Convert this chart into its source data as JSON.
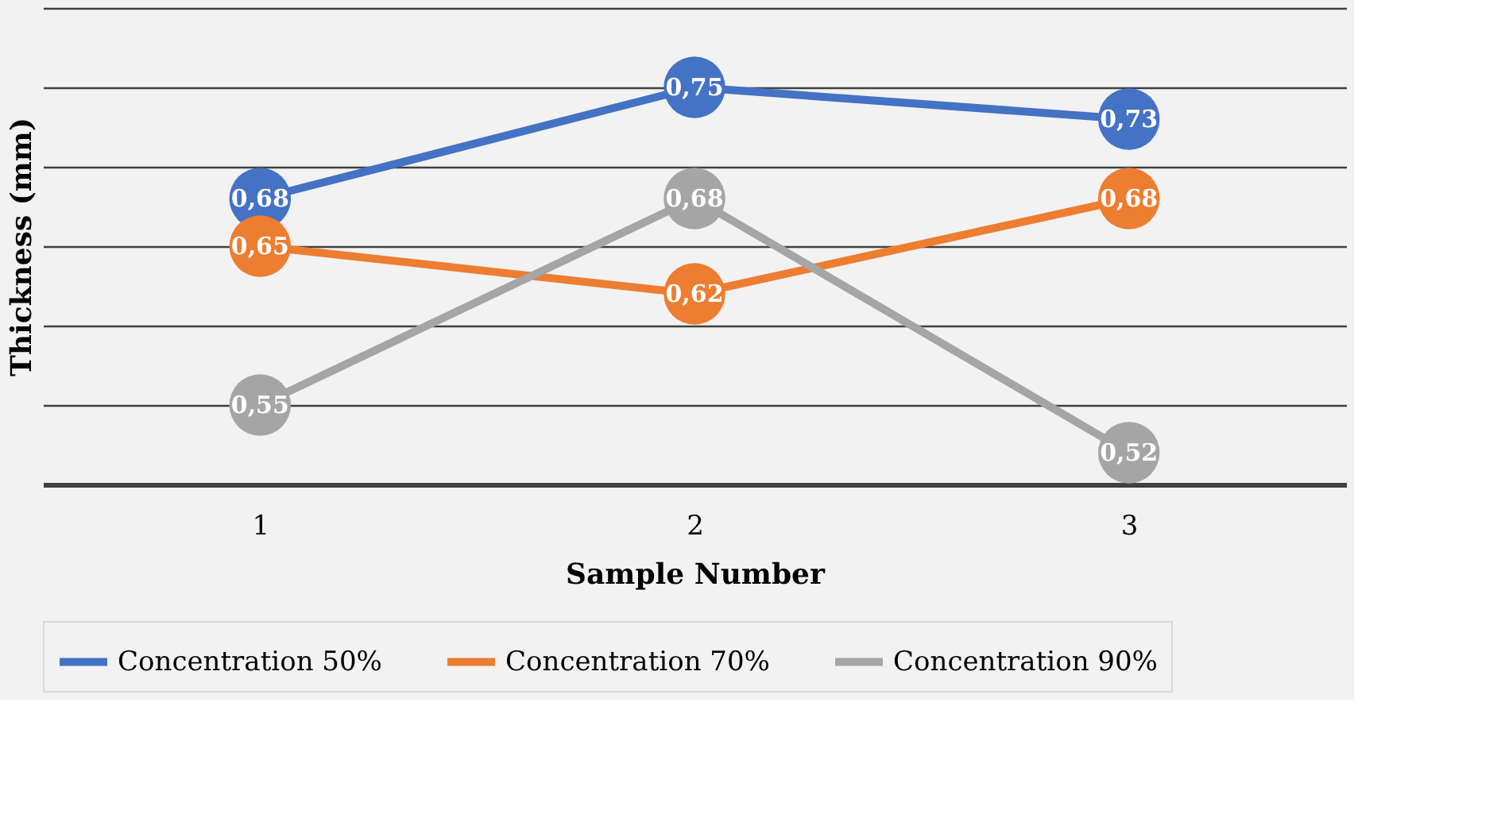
{
  "chart_data": {
    "type": "line",
    "xlabel": "Sample Number",
    "ylabel": "Thickness (mm)",
    "categories": [
      "1",
      "2",
      "3"
    ],
    "series": [
      {
        "name": "Concentration 50%",
        "color": "#4472c4",
        "values": [
          0.68,
          0.75,
          0.73
        ],
        "value_labels": [
          "0,68",
          "0,75",
          "0,73"
        ]
      },
      {
        "name": "Concentration 70%",
        "color": "#ed7d31",
        "values": [
          0.65,
          0.62,
          0.68
        ],
        "value_labels": [
          "0,65",
          "0,62",
          "0,68"
        ]
      },
      {
        "name": "Concentration 90%",
        "color": "#a5a5a5",
        "values": [
          0.55,
          0.68,
          0.52
        ],
        "value_labels": [
          "0,55",
          "0,68",
          "0,52"
        ]
      }
    ],
    "ylim": [
      0.5,
      0.8
    ],
    "yticks": [
      {
        "value": 0.5,
        "label": null
      },
      {
        "value": 0.55,
        "label": null
      },
      {
        "value": 0.6,
        "label": null
      },
      {
        "value": 0.65,
        "label": null
      },
      {
        "value": 0.7,
        "label": null
      },
      {
        "value": 0.75,
        "label": null
      },
      {
        "value": 0.8,
        "label": null
      }
    ],
    "tick_labels": "x",
    "grid": "y",
    "legend": "bottom",
    "marker": "circle",
    "line_style": "solid"
  }
}
